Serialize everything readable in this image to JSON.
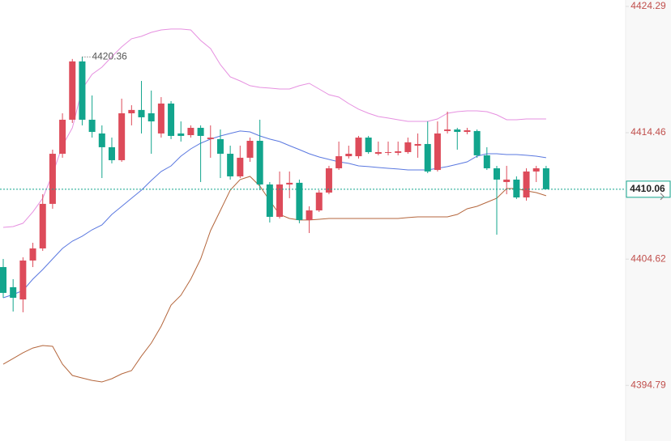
{
  "chart_data": {
    "type": "candlestick",
    "up_color": "#dd4b5a",
    "down_color": "#12a58d",
    "ylim": [
      4390.46,
      4424.79
    ],
    "yticks": [
      4424.29,
      4414.46,
      4404.62,
      4394.79
    ],
    "annotation": 4420.36,
    "last_price": 4410.06,
    "last_price_color": "#12a58d",
    "open": [
      4404.0,
      4402.43,
      4401.48,
      4404.51,
      4405.45,
      4408.92,
      4412.82,
      4415.47,
      4420.01,
      4415.47,
      4414.4,
      4413.33,
      4412.32,
      4415.97,
      4416.23,
      4415.97,
      4414.4,
      4416.73,
      4414.4,
      4414.27,
      4414.84,
      4413.96,
      4413.96,
      4412.82,
      4411.06,
      4412.51,
      4413.83,
      4410.43,
      4407.91,
      4410.43,
      4410.56,
      4407.66,
      4408.41,
      4409.8,
      4411.69,
      4412.63,
      4412.63,
      4414.08,
      4412.82,
      4412.89,
      4412.89,
      4412.95,
      4413.45,
      4413.58,
      4411.56,
      4414.59,
      4414.71,
      4414.52,
      4414.59,
      4412.7,
      4411.69,
      4410.62,
      4410.81,
      4409.42,
      4411.44,
      4411.69
    ],
    "high": [
      4404.63,
      4403.06,
      4404.76,
      4405.89,
      4409.67,
      4413.14,
      4415.97,
      4420.2,
      4420.36,
      4417.36,
      4415.03,
      4414.08,
      4417.11,
      4416.6,
      4418.49,
      4417.74,
      4417.23,
      4416.92,
      4415.34,
      4415.03,
      4415.03,
      4415.03,
      4414.71,
      4413.45,
      4413.45,
      4414.08,
      4415.47,
      4410.62,
      4411.44,
      4411.44,
      4410.81,
      4408.73,
      4409.99,
      4411.88,
      4413.77,
      4413.45,
      4414.21,
      4414.21,
      4413.77,
      4413.77,
      4413.77,
      4414.08,
      4414.4,
      4415.34,
      4415.34,
      4416.1,
      4414.84,
      4414.84,
      4414.71,
      4413.33,
      4411.88,
      4411.88,
      4411.06,
      4411.69,
      4411.88,
      4411.88
    ],
    "low": [
      4401.61,
      4400.54,
      4400.48,
      4404.0,
      4405.26,
      4408.54,
      4412.51,
      4415.22,
      4415.03,
      4414.08,
      4410.93,
      4412.07,
      4412.19,
      4415.03,
      4414.4,
      4412.82,
      4414.08,
      4413.96,
      4413.77,
      4414.08,
      4410.62,
      4412.51,
      4410.93,
      4410.81,
      4410.93,
      4412.19,
      4409.99,
      4407.47,
      4407.78,
      4409.36,
      4407.41,
      4406.65,
      4408.29,
      4409.67,
      4411.56,
      4412.45,
      4412.45,
      4412.82,
      4412.7,
      4412.7,
      4412.7,
      4412.82,
      4412.51,
      4411.31,
      4411.44,
      4414.4,
      4413.14,
      4414.34,
      4412.51,
      4411.56,
      4406.52,
      4409.67,
      4409.3,
      4409.17,
      4410.62,
      4410.3
    ],
    "close": [
      4401.99,
      4401.61,
      4404.51,
      4405.45,
      4408.92,
      4412.82,
      4415.47,
      4420.01,
      4415.47,
      4414.52,
      4413.33,
      4412.32,
      4415.97,
      4416.23,
      4415.66,
      4415.34,
      4416.73,
      4414.21,
      4414.21,
      4414.84,
      4414.21,
      4414.08,
      4412.82,
      4411.06,
      4412.51,
      4413.83,
      4410.43,
      4407.91,
      4410.43,
      4410.56,
      4407.66,
      4408.41,
      4409.8,
      4411.69,
      4412.63,
      4412.82,
      4414.08,
      4412.95,
      4412.95,
      4412.95,
      4413.01,
      4413.71,
      4413.58,
      4411.44,
      4414.4,
      4414.71,
      4414.52,
      4414.65,
      4412.7,
      4411.69,
      4410.81,
      4410.81,
      4409.42,
      4411.44,
      4411.69,
      4410.06
    ],
    "bands": [
      {
        "color": "#e690e0",
        "values": [
          4407.09,
          4407.15,
          4407.41,
          4408.29,
          4409.36,
          4411.25,
          4413.45,
          4414.84,
          4417.86,
          4419.0,
          4419.56,
          4420.38,
          4421.14,
          4421.77,
          4421.96,
          4422.27,
          4422.46,
          4422.53,
          4422.53,
          4422.46,
          4421.64,
          4421.01,
          4419.75,
          4418.81,
          4418.49,
          4418.12,
          4417.99,
          4417.93,
          4417.86,
          4417.86,
          4418.12,
          4418.3,
          4417.86,
          4417.42,
          4417.23,
          4416.73,
          4416.29,
          4415.97,
          4415.72,
          4415.6,
          4415.47,
          4415.34,
          4415.34,
          4415.34,
          4415.53,
          4415.97,
          4416.1,
          4416.16,
          4416.16,
          4416.1,
          4415.85,
          4415.47,
          4415.47,
          4415.53,
          4415.53,
          4415.53
        ]
      },
      {
        "color": "#5a78e0",
        "values": [
          4401.61,
          4401.86,
          4402.18,
          4403.06,
          4403.81,
          4404.63,
          4405.45,
          4406.02,
          4406.4,
          4406.9,
          4407.28,
          4408.1,
          4408.73,
          4409.36,
          4409.99,
          4410.74,
          4411.44,
          4411.88,
          4412.63,
          4413.2,
          4413.64,
          4413.96,
          4414.21,
          4414.4,
          4414.59,
          4414.52,
          4414.21,
          4413.96,
          4413.77,
          4413.45,
          4413.14,
          4412.82,
          4412.57,
          4412.38,
          4412.19,
          4412.07,
          4411.88,
          4411.82,
          4411.75,
          4411.69,
          4411.63,
          4411.56,
          4411.56,
          4411.56,
          4411.69,
          4411.82,
          4412.0,
          4412.19,
          4412.63,
          4412.82,
          4412.82,
          4412.76,
          4412.76,
          4412.7,
          4412.63,
          4412.51
        ]
      },
      {
        "color": "#b4663c",
        "values": [
          4396.44,
          4396.88,
          4397.33,
          4397.7,
          4397.89,
          4397.83,
          4396.44,
          4395.56,
          4395.37,
          4395.18,
          4395.06,
          4395.31,
          4395.69,
          4395.94,
          4397.07,
          4398.08,
          4399.4,
          4401.04,
          4401.8,
          4403.06,
          4404.63,
          4406.84,
          4408.41,
          4409.99,
          4410.81,
          4411.06,
          4410.3,
          4409.17,
          4408.1,
          4407.78,
          4407.66,
          4407.66,
          4407.72,
          4407.78,
          4407.78,
          4407.78,
          4407.78,
          4407.78,
          4407.78,
          4407.78,
          4407.78,
          4407.85,
          4407.91,
          4407.91,
          4407.91,
          4407.91,
          4408.1,
          4408.54,
          4408.73,
          4409.04,
          4409.36,
          4410.11,
          4410.11,
          4409.93,
          4409.8,
          4409.55
        ]
      }
    ]
  }
}
